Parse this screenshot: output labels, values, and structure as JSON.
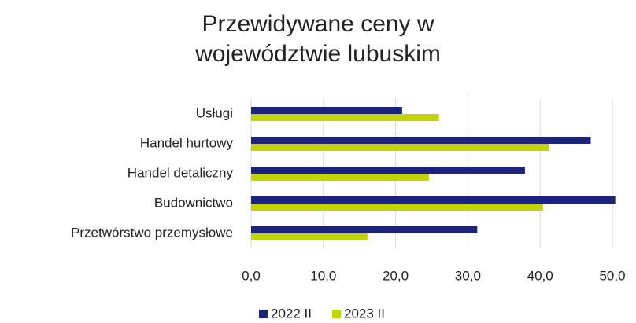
{
  "chart_data": {
    "type": "barh",
    "title": "Przewidywane ceny w województwie lubuskim",
    "categories": [
      "Usługi",
      "Handel hurtowy",
      "Handel detaliczny",
      "Budownictwo",
      "Przetwórstwo przemysłowe"
    ],
    "series": [
      {
        "name": "2022 II",
        "color": "#1b237a",
        "values": [
          20.9,
          47.0,
          37.9,
          50.4,
          31.3
        ]
      },
      {
        "name": "2023 II",
        "color": "#c3d500",
        "values": [
          26.0,
          41.2,
          24.6,
          40.4,
          16.1
        ]
      }
    ],
    "xlim": [
      0,
      50
    ],
    "xticks": [
      {
        "value": 0,
        "label": "0,0"
      },
      {
        "value": 10,
        "label": "10,0"
      },
      {
        "value": 20,
        "label": "20,0"
      },
      {
        "value": 30,
        "label": "30,0"
      },
      {
        "value": 40,
        "label": "40,0"
      },
      {
        "value": 50,
        "label": "50,0"
      }
    ],
    "grid": true,
    "legend": "bottom"
  }
}
